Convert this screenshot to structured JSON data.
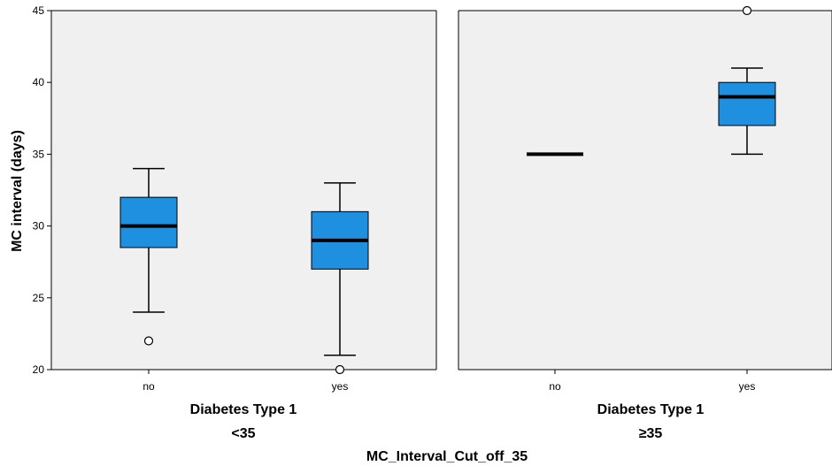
{
  "chart_data": {
    "type": "boxplot",
    "ylabel": "MC interval (days)",
    "ylim": [
      20,
      45
    ],
    "yticks": [
      20,
      25,
      30,
      35,
      40,
      45
    ],
    "grid": false,
    "panel_variable": "MC_Interval_Cut_off_35",
    "colors": {
      "box_fill": "#1f8fe0",
      "panel_bg": "#f0f0f0",
      "stroke": "#000000"
    },
    "panels": [
      {
        "label": "<35",
        "xlabel": "Diabetes Type 1",
        "categories": [
          "no",
          "yes"
        ],
        "boxes": [
          {
            "category": "no",
            "whisker_low": 24,
            "q1": 28.5,
            "median": 30,
            "q3": 32,
            "whisker_high": 34,
            "outliers": [
              22
            ]
          },
          {
            "category": "yes",
            "whisker_low": 21,
            "q1": 27,
            "median": 29,
            "q3": 31,
            "whisker_high": 33,
            "outliers": [
              20
            ]
          }
        ]
      },
      {
        "label": "≥35",
        "xlabel": "Diabetes Type 1",
        "categories": [
          "no",
          "yes"
        ],
        "boxes": [
          {
            "category": "no",
            "whisker_low": 35,
            "q1": 35,
            "median": 35,
            "q3": 35,
            "whisker_high": 35,
            "outliers": []
          },
          {
            "category": "yes",
            "whisker_low": 35,
            "q1": 37,
            "median": 39,
            "q3": 40,
            "whisker_high": 41,
            "outliers": [
              45
            ]
          }
        ]
      }
    ]
  }
}
